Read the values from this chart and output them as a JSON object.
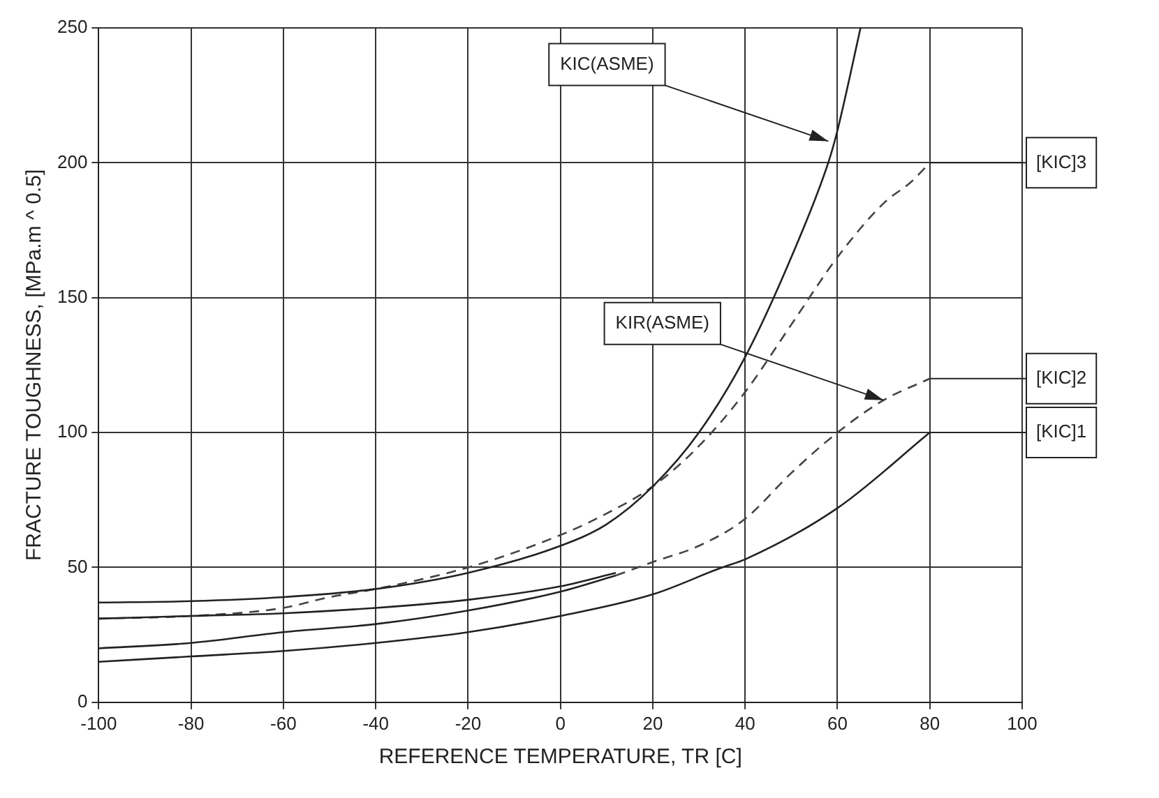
{
  "chart_data": {
    "type": "line",
    "xlabel": "REFERENCE TEMPERATURE, TR [C]",
    "ylabel": "FRACTURE TOUGHNESS, [MPa.m ^ 0.5]",
    "xlim": [
      -100,
      100
    ],
    "ylim": [
      0,
      250
    ],
    "xticks": [
      -100,
      -80,
      -60,
      -40,
      -20,
      0,
      20,
      40,
      60,
      80,
      100
    ],
    "yticks": [
      0,
      50,
      100,
      150,
      200,
      250
    ],
    "grid": true,
    "legend": false,
    "marker": "none",
    "series": [
      {
        "color": "#222222",
        "line_style": "solid",
        "x": [
          -100,
          -80,
          -60,
          -40,
          -20,
          0,
          10,
          20,
          30,
          40,
          50,
          58,
          60,
          65
        ],
        "values": [
          37,
          37.5,
          39,
          42,
          48,
          58,
          66,
          80,
          100,
          128,
          165,
          200,
          212,
          250
        ]
      },
      {
        "color": "#222222",
        "line_style": "solid",
        "x": [
          -100,
          -80,
          -60,
          -40,
          -20,
          0,
          12
        ],
        "values": [
          31,
          32,
          33,
          35,
          38,
          43,
          48
        ]
      },
      {
        "color": "#222222",
        "line_style": "solid",
        "x": [
          -100,
          -80,
          -60,
          -40,
          -20,
          0,
          12
        ],
        "values": [
          20,
          22,
          26,
          29,
          34,
          41,
          47
        ]
      },
      {
        "name": "[KIC]1",
        "color": "#222222",
        "line_style": "solid",
        "x": [
          -100,
          -80,
          -60,
          -40,
          -20,
          0,
          20,
          35,
          40,
          60,
          80
        ],
        "values": [
          15,
          17,
          19,
          22,
          26,
          32,
          40,
          50,
          53,
          72,
          100
        ]
      },
      {
        "name": "[KIC]2",
        "color": "#444444",
        "line_style": "dashed",
        "x": [
          12,
          20,
          30,
          40,
          50,
          60,
          70,
          80
        ],
        "values": [
          47,
          52,
          58,
          68,
          85,
          100,
          112,
          120
        ]
      },
      {
        "name": "[KIC]3",
        "color": "#444444",
        "line_style": "dashed",
        "x": [
          -100,
          -80,
          -60,
          -50,
          -40,
          -20,
          0,
          10,
          20,
          30,
          40,
          50,
          60,
          70,
          76,
          80
        ],
        "values": [
          31,
          32,
          35,
          39,
          42,
          50,
          62,
          70,
          80,
          95,
          115,
          140,
          165,
          185,
          193,
          200
        ]
      }
    ],
    "annotations": [
      {
        "text": "KIC(ASME)",
        "x": 58,
        "y": 208
      },
      {
        "text": "KIR(ASME)",
        "x": 70,
        "y": 112
      }
    ]
  }
}
